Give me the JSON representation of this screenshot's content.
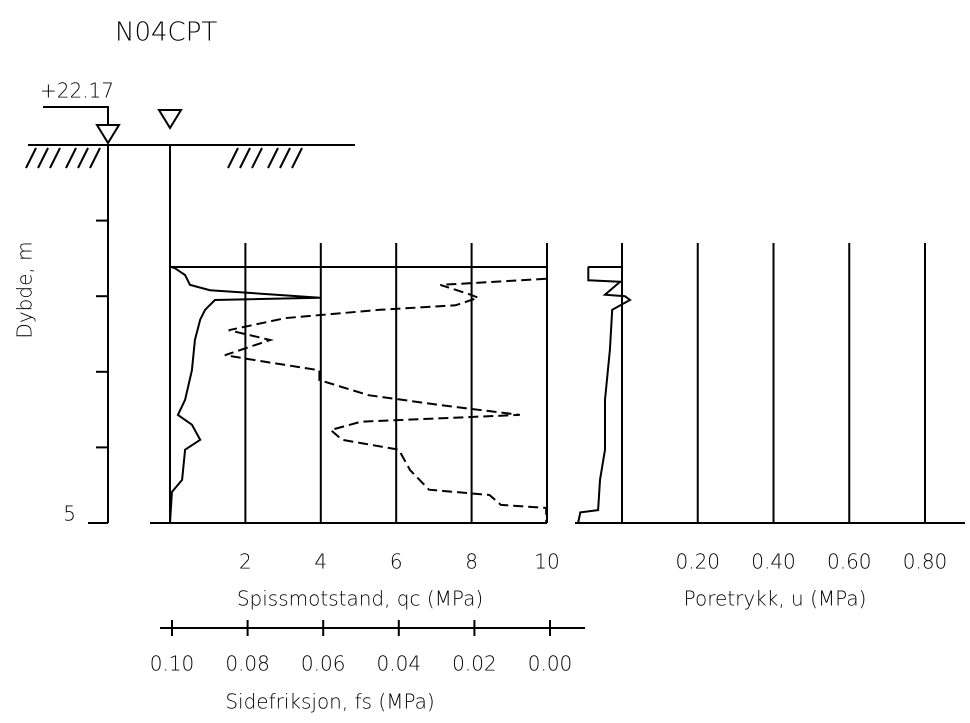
{
  "chart_data": {
    "type": "line",
    "title": "N04CPT",
    "annotation": "+22.17",
    "ylabel": "Dybde, m",
    "ylim": [
      0,
      5
    ],
    "yticks": [
      5
    ],
    "yminor_ticks": [
      1,
      2,
      3,
      4
    ],
    "axes": [
      {
        "label": "Spissmotstand, qc (MPa)",
        "xlim": [
          0,
          10
        ],
        "xticks": [
          2,
          4,
          6,
          8,
          10
        ],
        "grid": true
      },
      {
        "label": "Sidefriksjon, fs (MPa)",
        "xlim": [
          0.1,
          0
        ],
        "xticks": [
          {
            "value": 0.1,
            "label": "0.10"
          },
          {
            "value": 0.08,
            "label": "0.08"
          },
          {
            "value": 0.06,
            "label": "0.06"
          },
          {
            "value": 0.04,
            "label": "0.04"
          },
          {
            "value": 0.02,
            "label": "0.02"
          },
          {
            "value": 0,
            "label": "0.00"
          }
        ],
        "grid": false
      },
      {
        "label": "Poretrykk, u (MPa)",
        "xlim": [
          0,
          0.8
        ],
        "xticks": [
          {
            "value": 0.2,
            "label": "0.20"
          },
          {
            "value": 0.4,
            "label": "0.40"
          },
          {
            "value": 0.6,
            "label": "0.60"
          },
          {
            "value": 0.8,
            "label": "0.80"
          }
        ],
        "grid": true
      }
    ],
    "series": [
      {
        "axis": 0,
        "style": "solid",
        "color": "#000000",
        "depth": [
          1.61,
          1.63,
          1.72,
          1.85,
          1.92,
          2.02,
          2.05,
          2.18,
          2.31,
          2.58,
          2.98,
          3.37,
          3.57,
          3.7,
          3.9,
          4.03,
          4.43,
          4.59,
          5.0
        ],
        "values": [
          0,
          0.13,
          0.4,
          0.53,
          1.06,
          3.98,
          1.19,
          0.93,
          0.8,
          0.66,
          0.58,
          0.4,
          0.21,
          0.58,
          0.8,
          0.4,
          0.32,
          0.05,
          0
        ]
      },
      {
        "axis": 1,
        "style": "dashed",
        "color": "#000000",
        "depth": [
          1.77,
          1.85,
          1.98,
          2.02,
          2.12,
          2.18,
          2.29,
          2.45,
          2.58,
          2.78,
          2.87,
          2.98,
          3.11,
          3.31,
          3.44,
          3.57,
          3.66,
          3.77,
          3.9,
          4.03,
          4.3,
          4.56,
          4.63,
          4.76,
          4.8,
          5.0
        ],
        "values": [
          0.001,
          0.029,
          0.021,
          0.019,
          0.025,
          0.045,
          0.07,
          0.085,
          0.074,
          0.086,
          0.075,
          0.061,
          0.061,
          0.048,
          0.029,
          0.008,
          0.05,
          0.058,
          0.055,
          0.04,
          0.037,
          0.032,
          0.016,
          0.013,
          0.001,
          0.001
        ]
      },
      {
        "axis": 2,
        "style": "solid",
        "color": "#000000",
        "depth": [
          1.61,
          1.79,
          1.81,
          1.98,
          2.0,
          2.05,
          2.18,
          2.71,
          3.37,
          4.03,
          4.43,
          4.83,
          4.86,
          5.0
        ],
        "values": [
          -0.089,
          -0.089,
          -0.005,
          -0.045,
          0.008,
          0.021,
          -0.026,
          -0.032,
          -0.045,
          -0.045,
          -0.058,
          -0.063,
          -0.11,
          -0.116
        ]
      }
    ]
  }
}
